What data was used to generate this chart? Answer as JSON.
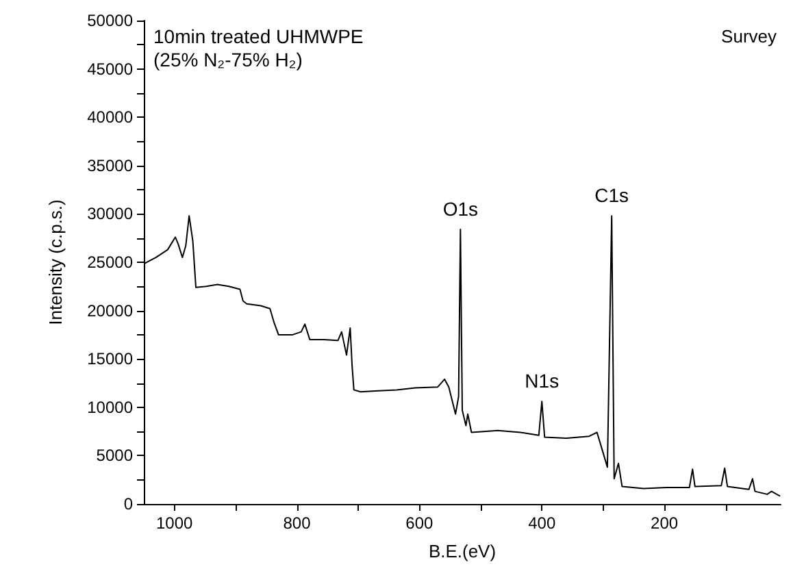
{
  "chart_data": {
    "type": "line",
    "title": "10min treated UHMWPE\n(25% N₂-75% H₂)",
    "xlabel": "B.E.(eV)",
    "ylabel": "Intensity (c.p.s.)",
    "x": [
      1048,
      1030,
      1011,
      998.5,
      994,
      987,
      981.5,
      976,
      970,
      965,
      948,
      930,
      911,
      893,
      888,
      882,
      859,
      844,
      837,
      830,
      807,
      793,
      787,
      779,
      756,
      733,
      727,
      722,
      719,
      713,
      710,
      707,
      696,
      667,
      637,
      607,
      570,
      559,
      552,
      541,
      536,
      533,
      530,
      524,
      521,
      515,
      472,
      435,
      405,
      400,
      395.5,
      360,
      323,
      310,
      301,
      293,
      286,
      282,
      275,
      269,
      234,
      196,
      159,
      154,
      150,
      107,
      101.5,
      97,
      62,
      56,
      52,
      32,
      25,
      11
    ],
    "series": [
      {
        "color": "#000000",
        "values": [
          24900,
          25500,
          26300,
          27600,
          26900,
          25500,
          26700,
          29800,
          27200,
          22400,
          22500,
          22700,
          22500,
          22200,
          21000,
          20700,
          20500,
          20200,
          18700,
          17500,
          17500,
          17800,
          18600,
          17000,
          17000,
          16900,
          17800,
          16300,
          15400,
          18200,
          14400,
          11800,
          11600,
          11700,
          11800,
          12000,
          12100,
          12900,
          12100,
          9300,
          11100,
          28400,
          9700,
          8100,
          9300,
          7400,
          7600,
          7400,
          7100,
          10600,
          6900,
          6800,
          7000,
          7400,
          5500,
          3800,
          29800,
          2600,
          4200,
          1800,
          1600,
          1700,
          1700,
          3600,
          1800,
          1900,
          3700,
          1800,
          1500,
          2600,
          1300,
          1000,
          1300,
          800
        ]
      }
    ],
    "xlim": [
      1050,
      10
    ],
    "xticks": [
      1000,
      {
        "value": 900,
        "label": null
      },
      800,
      {
        "value": 700,
        "label": null
      },
      600,
      {
        "value": 500,
        "label": null
      },
      400,
      {
        "value": 300,
        "label": null
      },
      200,
      {
        "value": 100,
        "label": null
      }
    ],
    "ylim": [
      0,
      50000
    ],
    "yticks": [
      0,
      {
        "value": 2500,
        "label": null
      },
      5000,
      {
        "value": 7500,
        "label": null
      },
      10000,
      {
        "value": 12500,
        "label": null
      },
      15000,
      {
        "value": 17500,
        "label": null
      },
      20000,
      {
        "value": 22500,
        "label": null
      },
      25000,
      {
        "value": 27500,
        "label": null
      },
      30000,
      {
        "value": 32500,
        "label": null
      },
      35000,
      {
        "value": 37500,
        "label": null
      },
      40000,
      {
        "value": 42500,
        "label": null
      },
      45000,
      {
        "value": 47500,
        "label": null
      },
      50000
    ],
    "annotations": [
      {
        "text": "O1s",
        "x": 533,
        "y": 28400
      },
      {
        "text": "N1s",
        "x": 400,
        "y": 10600
      },
      {
        "text": "C1s",
        "x": 286,
        "y": 29800
      },
      "Survey"
    ],
    "grid": false,
    "marker": "none",
    "line_style": "solid"
  }
}
